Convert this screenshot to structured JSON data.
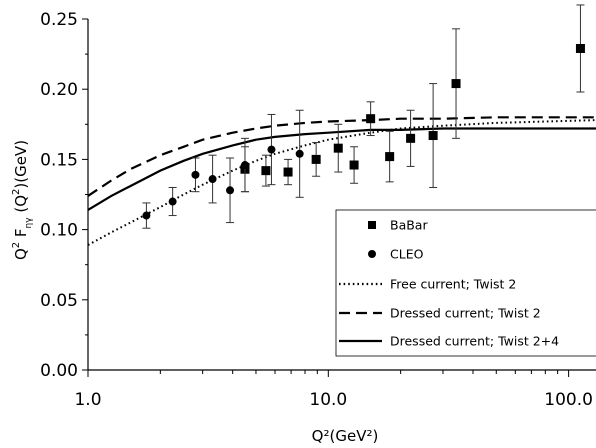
{
  "chart_data": {
    "type": "scatter",
    "title": "",
    "xlabel": "Q²(GeV²)",
    "ylabel_parts": {
      "q": "Q",
      "sup1": "2",
      "f": " F",
      "sub": "ηγ",
      "mid": " (Q",
      "sup2": "2",
      "end": ")(GeV)"
    },
    "x_scale": "log",
    "xlim": [
      1.0,
      130.0
    ],
    "ylim": [
      0.0,
      0.25
    ],
    "x_ticks": [
      {
        "value": 1.0,
        "label": "1.0"
      },
      {
        "value": 10.0,
        "label": "10.0"
      },
      {
        "value": 100.0,
        "label": "100.0"
      }
    ],
    "y_ticks": [
      {
        "value": 0.0,
        "label": "0.00"
      },
      {
        "value": 0.05,
        "label": "0.05"
      },
      {
        "value": 0.1,
        "label": "0.10"
      },
      {
        "value": 0.15,
        "label": "0.15"
      },
      {
        "value": 0.2,
        "label": "0.20"
      },
      {
        "value": 0.25,
        "label": "0.25"
      }
    ],
    "grid": false,
    "legend_position": "bottom-right",
    "points": [
      {
        "name": "BaBar",
        "marker": "square",
        "data": [
          {
            "x": 4.5,
            "y": 0.143,
            "err": 0.016
          },
          {
            "x": 5.5,
            "y": 0.142,
            "err": 0.011
          },
          {
            "x": 6.8,
            "y": 0.141,
            "err": 0.009
          },
          {
            "x": 8.9,
            "y": 0.15,
            "err": 0.012
          },
          {
            "x": 11.0,
            "y": 0.158,
            "err": 0.017
          },
          {
            "x": 12.8,
            "y": 0.146,
            "err": 0.013
          },
          {
            "x": 15.0,
            "y": 0.179,
            "err": 0.012
          },
          {
            "x": 18.0,
            "y": 0.152,
            "err": 0.018
          },
          {
            "x": 22.0,
            "y": 0.165,
            "err": 0.02
          },
          {
            "x": 27.3,
            "y": 0.167,
            "err": 0.037
          },
          {
            "x": 34.0,
            "y": 0.204,
            "err": 0.039
          },
          {
            "x": 112.0,
            "y": 0.229,
            "err": 0.031
          }
        ]
      },
      {
        "name": "CLEO",
        "marker": "circle",
        "data": [
          {
            "x": 1.75,
            "y": 0.11,
            "err": 0.009
          },
          {
            "x": 2.25,
            "y": 0.12,
            "err": 0.01
          },
          {
            "x": 2.8,
            "y": 0.139,
            "err": 0.012
          },
          {
            "x": 3.3,
            "y": 0.136,
            "err": 0.017
          },
          {
            "x": 3.9,
            "y": 0.128,
            "err": 0.023
          },
          {
            "x": 4.5,
            "y": 0.146,
            "err": 0.019
          },
          {
            "x": 5.8,
            "y": 0.157,
            "err": 0.025
          },
          {
            "x": 7.6,
            "y": 0.154,
            "err": 0.031
          }
        ]
      }
    ],
    "series": [
      {
        "name": "Free current; Twist 2",
        "style": "dotted",
        "x": [
          1,
          1.25,
          1.5,
          2,
          2.5,
          3,
          4,
          5,
          6,
          8,
          10,
          15,
          20,
          30,
          50,
          80,
          130
        ],
        "y": [
          0.089,
          0.098,
          0.105,
          0.116,
          0.125,
          0.132,
          0.142,
          0.149,
          0.154,
          0.16,
          0.164,
          0.169,
          0.172,
          0.174,
          0.176,
          0.177,
          0.178
        ]
      },
      {
        "name": "Dressed current; Twist 2",
        "style": "dashed",
        "x": [
          1,
          1.25,
          1.5,
          2,
          2.5,
          3,
          4,
          5,
          6,
          8,
          10,
          15,
          20,
          30,
          50,
          80,
          130
        ],
        "y": [
          0.124,
          0.135,
          0.143,
          0.153,
          0.159,
          0.164,
          0.169,
          0.172,
          0.174,
          0.176,
          0.177,
          0.178,
          0.179,
          0.179,
          0.18,
          0.18,
          0.18
        ]
      },
      {
        "name": "Dressed current; Twist 2+4",
        "style": "solid",
        "x": [
          1,
          1.25,
          1.5,
          2,
          2.5,
          3,
          4,
          5,
          6,
          8,
          10,
          15,
          20,
          30,
          50,
          80,
          130
        ],
        "y": [
          0.114,
          0.124,
          0.131,
          0.142,
          0.149,
          0.154,
          0.16,
          0.164,
          0.166,
          0.168,
          0.169,
          0.171,
          0.171,
          0.172,
          0.172,
          0.172,
          0.172
        ]
      }
    ],
    "legend": [
      {
        "label": "BaBar",
        "marker": "square"
      },
      {
        "label": "CLEO",
        "marker": "circle"
      },
      {
        "label": "Free current; Twist 2",
        "style": "dotted"
      },
      {
        "label": "Dressed current; Twist 2",
        "style": "dashed"
      },
      {
        "label": "Dressed current; Twist 2+4",
        "style": "solid"
      }
    ]
  }
}
